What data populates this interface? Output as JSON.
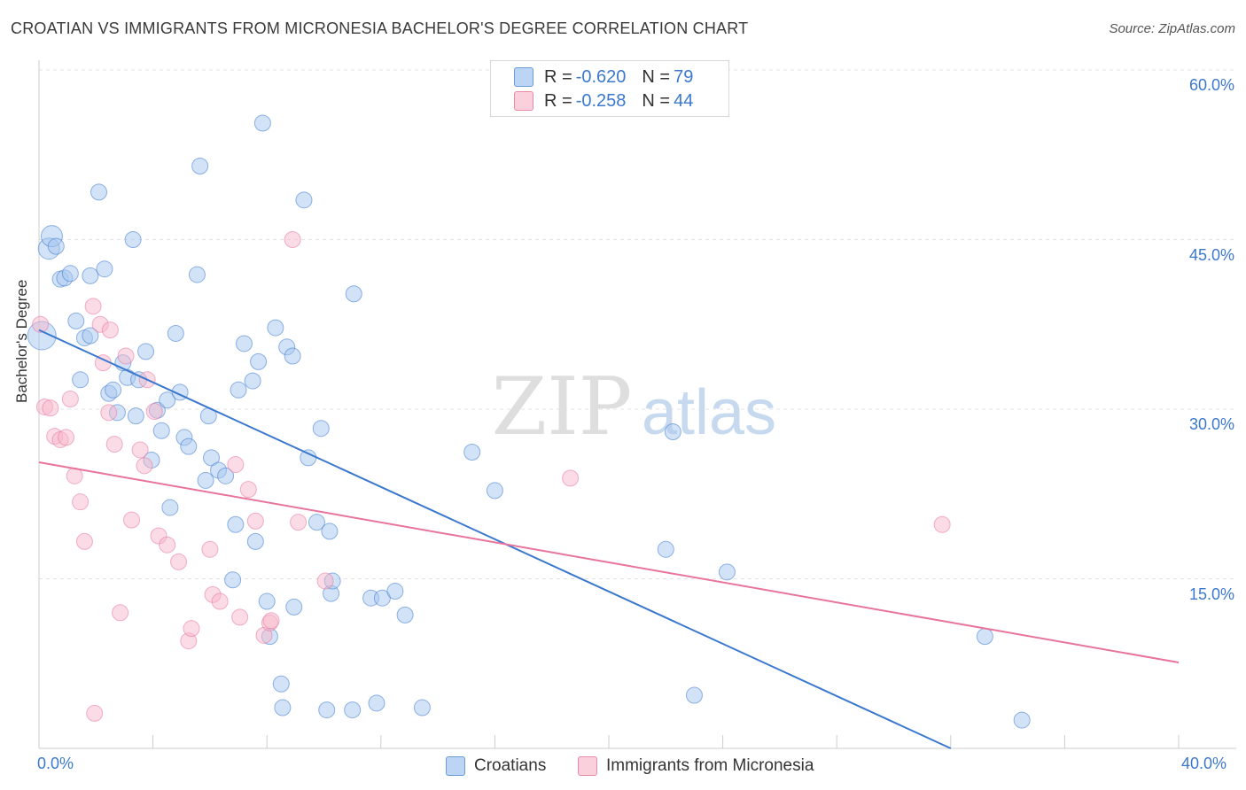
{
  "title": "CROATIAN VS IMMIGRANTS FROM MICRONESIA BACHELOR'S DEGREE CORRELATION CHART",
  "source": "Source: ZipAtlas.com",
  "watermark": {
    "zip": "ZIP",
    "atlas": "atlas"
  },
  "legend": {
    "rows": [
      {
        "r_label": "R = ",
        "r_value": "-0.620",
        "n_label": "N = ",
        "n_value": "79",
        "color": "#a8c8f0"
      },
      {
        "r_label": "R = ",
        "r_value": "-0.258",
        "n_label": "N = ",
        "n_value": "44",
        "color": "#f7b8cc"
      }
    ]
  },
  "chart_data": {
    "type": "scatter",
    "title": "CROATIAN VS IMMIGRANTS FROM MICRONESIA BACHELOR'S DEGREE CORRELATION CHART",
    "xlabel": "",
    "ylabel": "Bachelor's Degree",
    "xlim": [
      0,
      40
    ],
    "ylim": [
      0,
      60
    ],
    "x_ticks": [
      "0.0%",
      "40.0%"
    ],
    "y_ticks": [
      "15.0%",
      "30.0%",
      "45.0%",
      "60.0%"
    ],
    "y_tick_values": [
      15,
      30,
      45,
      60
    ],
    "grid": true,
    "legend_position": "top-center",
    "series": [
      {
        "name": "Croatians",
        "color": "#3b78cf",
        "fill": "#a8c8f0",
        "trend": {
          "x": [
            0,
            32
          ],
          "y": [
            37.0,
            0
          ]
        },
        "points": [
          [
            0.1,
            36.5
          ],
          [
            0.35,
            44.2
          ],
          [
            0.45,
            45.3
          ],
          [
            0.6,
            44.4
          ],
          [
            0.75,
            41.5
          ],
          [
            0.9,
            41.6
          ],
          [
            1.1,
            42.0
          ],
          [
            1.3,
            37.8
          ],
          [
            1.45,
            32.6
          ],
          [
            1.6,
            36.3
          ],
          [
            1.8,
            41.8
          ],
          [
            1.8,
            36.5
          ],
          [
            2.1,
            49.2
          ],
          [
            2.3,
            42.4
          ],
          [
            2.45,
            31.4
          ],
          [
            2.6,
            31.7
          ],
          [
            2.75,
            29.7
          ],
          [
            2.95,
            34.1
          ],
          [
            3.1,
            32.8
          ],
          [
            3.3,
            45.0
          ],
          [
            3.4,
            29.4
          ],
          [
            3.5,
            32.6
          ],
          [
            3.75,
            35.1
          ],
          [
            3.95,
            25.5
          ],
          [
            4.15,
            29.9
          ],
          [
            4.3,
            28.1
          ],
          [
            4.5,
            30.8
          ],
          [
            4.6,
            21.3
          ],
          [
            4.8,
            36.7
          ],
          [
            4.95,
            31.5
          ],
          [
            5.1,
            27.5
          ],
          [
            5.25,
            26.7
          ],
          [
            5.55,
            41.9
          ],
          [
            5.65,
            51.5
          ],
          [
            5.85,
            23.7
          ],
          [
            5.95,
            29.4
          ],
          [
            6.05,
            25.7
          ],
          [
            6.3,
            24.6
          ],
          [
            6.55,
            24.1
          ],
          [
            6.8,
            14.9
          ],
          [
            6.9,
            19.8
          ],
          [
            7.0,
            31.7
          ],
          [
            7.2,
            35.8
          ],
          [
            7.5,
            32.5
          ],
          [
            7.6,
            18.3
          ],
          [
            7.7,
            34.2
          ],
          [
            7.85,
            55.3
          ],
          [
            8.0,
            13.0
          ],
          [
            8.1,
            9.9
          ],
          [
            8.3,
            37.2
          ],
          [
            8.5,
            5.7
          ],
          [
            8.55,
            3.6
          ],
          [
            8.7,
            35.5
          ],
          [
            8.9,
            34.7
          ],
          [
            8.95,
            12.5
          ],
          [
            9.3,
            48.5
          ],
          [
            9.45,
            25.7
          ],
          [
            9.75,
            20.0
          ],
          [
            9.9,
            28.3
          ],
          [
            10.2,
            19.2
          ],
          [
            10.1,
            3.4
          ],
          [
            10.25,
            13.7
          ],
          [
            10.3,
            14.8
          ],
          [
            11.0,
            3.4
          ],
          [
            11.05,
            40.2
          ],
          [
            11.65,
            13.3
          ],
          [
            12.05,
            13.3
          ],
          [
            11.85,
            4.0
          ],
          [
            12.5,
            13.9
          ],
          [
            12.85,
            11.8
          ],
          [
            13.45,
            3.6
          ],
          [
            15.2,
            26.2
          ],
          [
            16.0,
            22.8
          ],
          [
            22.0,
            17.6
          ],
          [
            22.25,
            28.0
          ],
          [
            23.0,
            4.7
          ],
          [
            24.15,
            15.6
          ],
          [
            33.2,
            9.9
          ],
          [
            34.5,
            2.5
          ]
        ]
      },
      {
        "name": "Immigrants from Micronesia",
        "color": "#e8749c",
        "fill": "#f7b8cc",
        "trend": {
          "x": [
            0,
            40
          ],
          "y": [
            25.3,
            7.6
          ]
        },
        "points": [
          [
            0.05,
            37.5
          ],
          [
            0.2,
            30.2
          ],
          [
            0.4,
            30.1
          ],
          [
            0.55,
            27.6
          ],
          [
            0.75,
            27.3
          ],
          [
            0.95,
            27.5
          ],
          [
            1.1,
            30.9
          ],
          [
            1.25,
            24.1
          ],
          [
            1.45,
            21.8
          ],
          [
            1.6,
            18.3
          ],
          [
            1.9,
            39.1
          ],
          [
            2.15,
            37.5
          ],
          [
            2.25,
            34.1
          ],
          [
            2.45,
            29.7
          ],
          [
            2.5,
            37.0
          ],
          [
            2.65,
            26.9
          ],
          [
            2.85,
            12.0
          ],
          [
            3.05,
            34.7
          ],
          [
            3.25,
            20.2
          ],
          [
            3.55,
            26.4
          ],
          [
            3.7,
            25.0
          ],
          [
            3.8,
            32.6
          ],
          [
            4.05,
            29.8
          ],
          [
            4.2,
            18.8
          ],
          [
            4.5,
            18.0
          ],
          [
            4.9,
            16.5
          ],
          [
            5.25,
            9.5
          ],
          [
            5.35,
            10.6
          ],
          [
            6.0,
            17.6
          ],
          [
            6.1,
            13.6
          ],
          [
            6.35,
            13.0
          ],
          [
            6.9,
            25.1
          ],
          [
            7.05,
            11.6
          ],
          [
            7.35,
            22.9
          ],
          [
            7.6,
            20.1
          ],
          [
            7.9,
            10.0
          ],
          [
            8.1,
            11.1
          ],
          [
            8.15,
            11.3
          ],
          [
            8.9,
            45.0
          ],
          [
            9.1,
            20.0
          ],
          [
            10.05,
            14.8
          ],
          [
            18.65,
            23.9
          ],
          [
            1.95,
            3.1
          ],
          [
            31.7,
            19.8
          ]
        ]
      }
    ]
  },
  "bottom_legend": [
    {
      "label": "Croatians",
      "color": "#a8c8f0"
    },
    {
      "label": "Immigrants from Micronesia",
      "color": "#f7b8cc"
    }
  ]
}
